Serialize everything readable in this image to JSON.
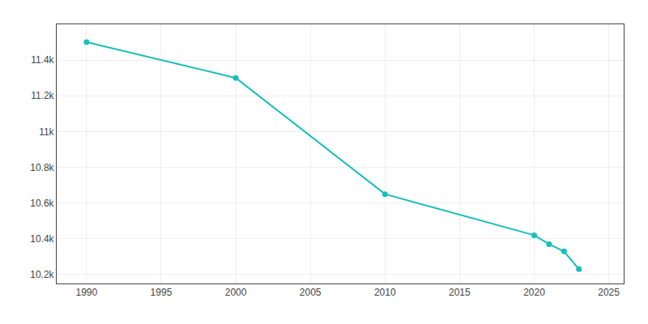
{
  "chart_data": {
    "type": "line",
    "x": [
      1990,
      2000,
      2010,
      2020,
      2021,
      2022,
      2023
    ],
    "values": [
      11500,
      11300,
      10650,
      10420,
      10370,
      10330,
      10230
    ],
    "color": "#17bebb",
    "marker": "circle",
    "line_style": "solid",
    "xlim": [
      1988,
      2026
    ],
    "xticks": [
      1990,
      1995,
      2000,
      2005,
      2010,
      2015,
      2020,
      2025
    ],
    "ylim": [
      10150,
      11600
    ],
    "yticks": [
      {
        "value": 10200,
        "label": "10.2k"
      },
      {
        "value": 10400,
        "label": "10.4k"
      },
      {
        "value": 10600,
        "label": "10.6k"
      },
      {
        "value": 10800,
        "label": "10.8k"
      },
      {
        "value": 11000,
        "label": "11k"
      },
      {
        "value": 11200,
        "label": "11.2k"
      },
      {
        "value": 11400,
        "label": "11.4k"
      }
    ],
    "grid": true
  }
}
